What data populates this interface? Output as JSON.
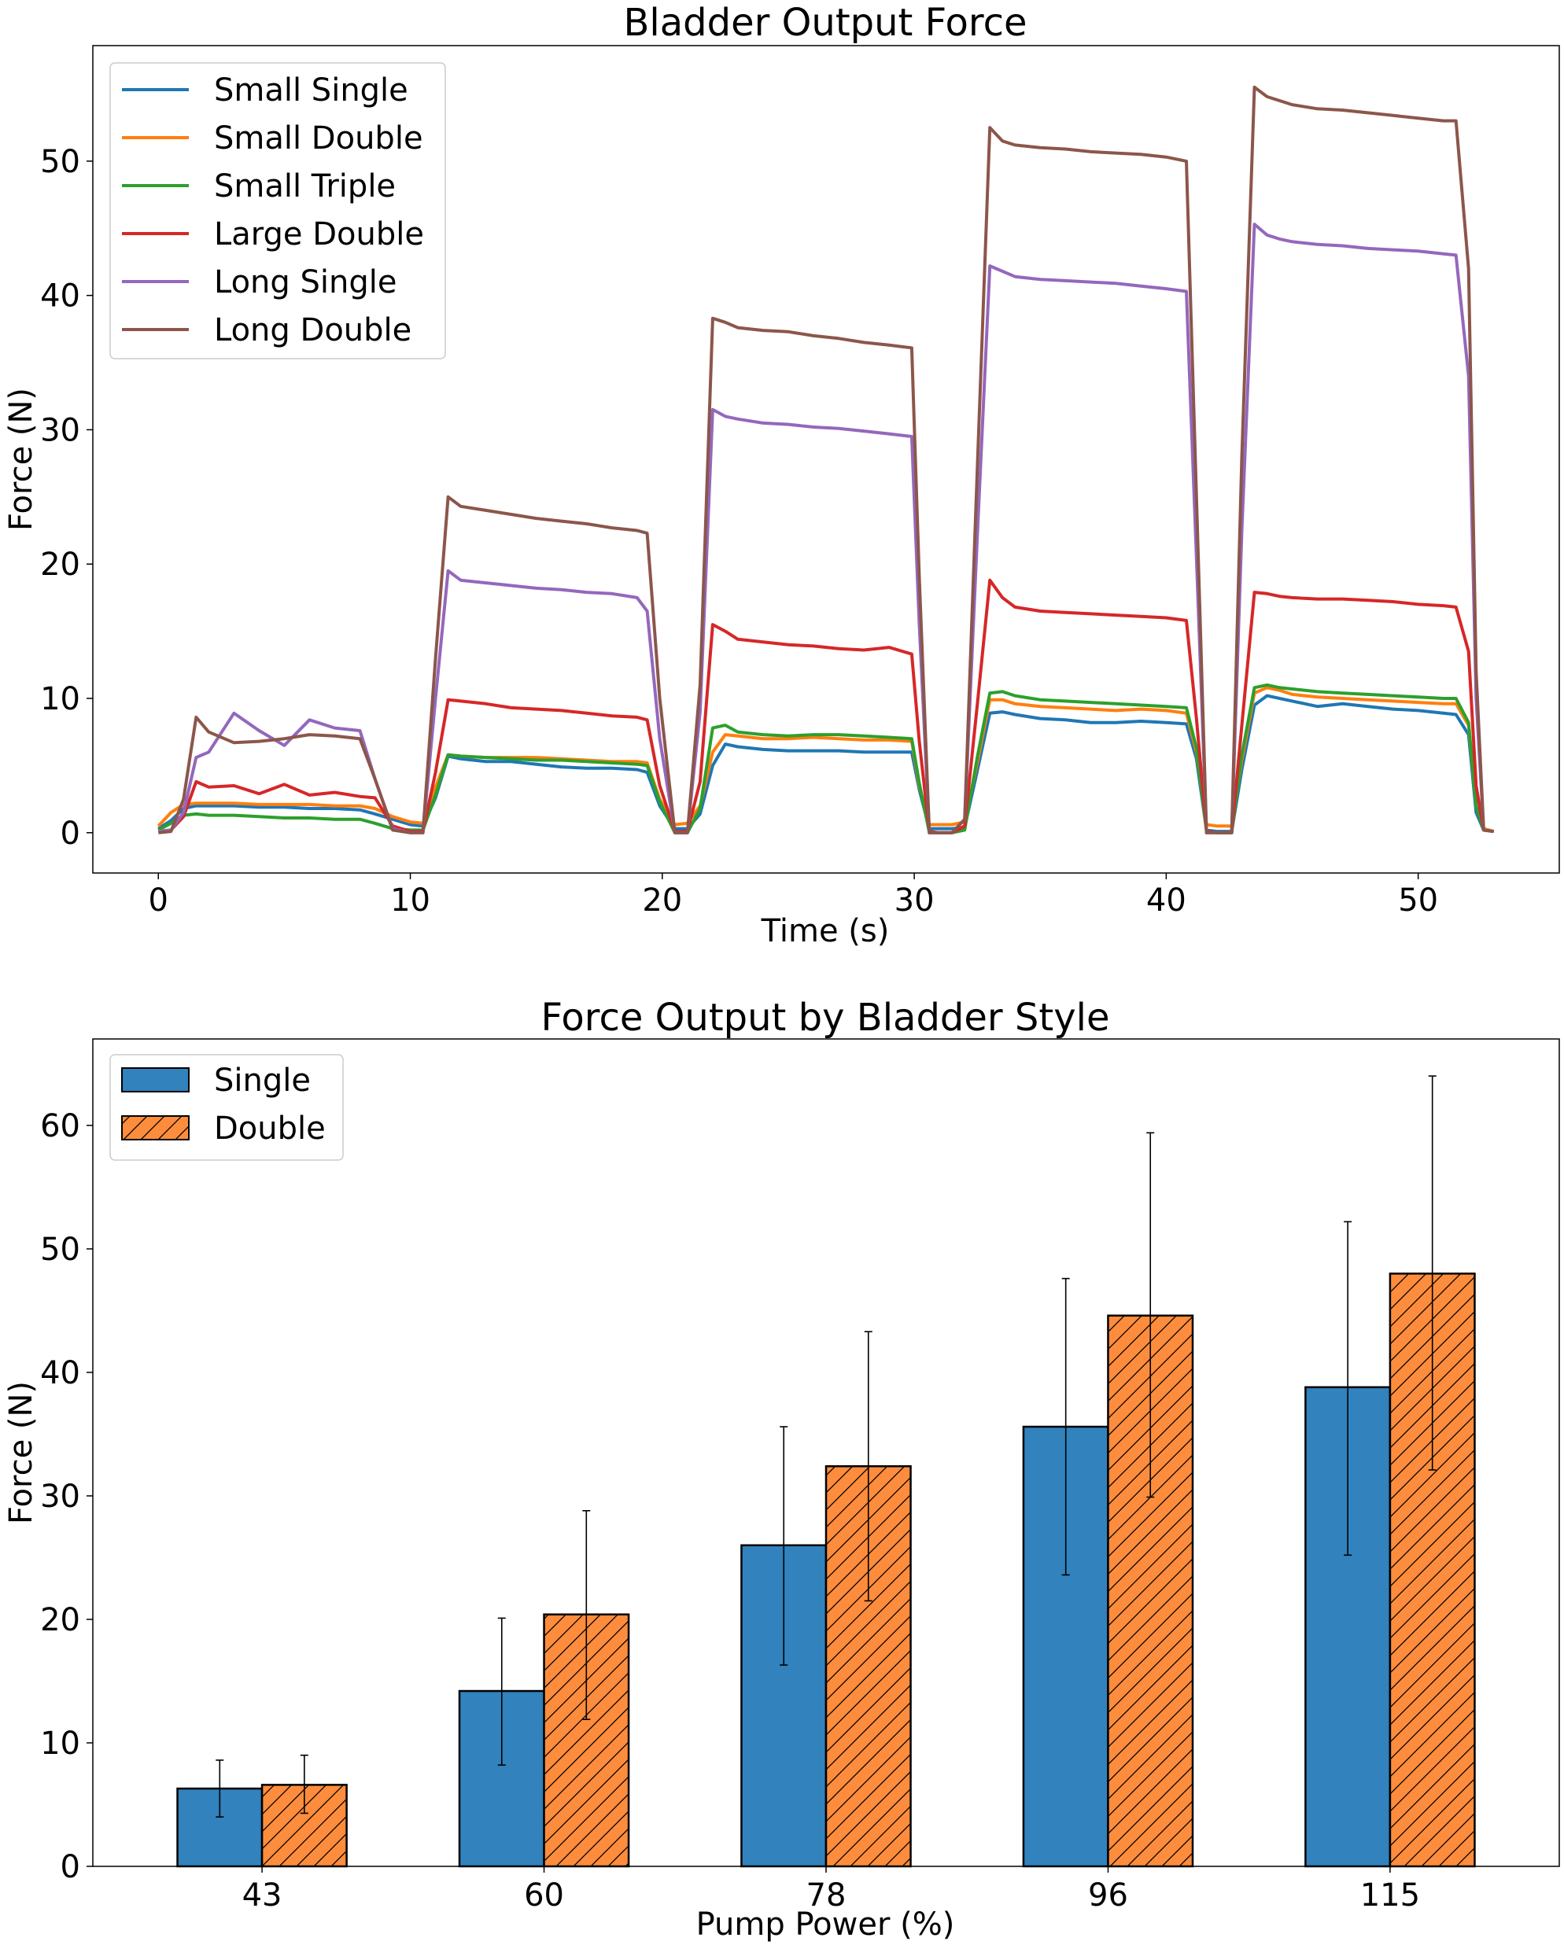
{
  "chart_data": [
    {
      "type": "line",
      "title": "Bladder Output Force",
      "xlabel": "Time (s)",
      "ylabel": "Force (N)",
      "xlim": [
        -2.6,
        55.6
      ],
      "ylim": [
        -3,
        58.6
      ],
      "xticks": [
        0,
        10,
        20,
        30,
        40,
        50
      ],
      "yticks": [
        0,
        10,
        20,
        30,
        40,
        50
      ],
      "grid": false,
      "legend_position": "top-left",
      "series": [
        {
          "name": "Small Single",
          "color": "#1f77b4",
          "x": [
            0,
            0.5,
            1,
            1.5,
            2,
            3,
            4,
            5,
            6,
            7,
            8,
            8.6,
            9.3,
            10,
            10.5,
            11,
            11.5,
            12,
            13,
            14,
            15,
            16,
            17,
            18,
            19,
            19.4,
            19.9,
            20.5,
            21,
            21.5,
            22,
            22.5,
            23,
            24,
            25,
            26,
            27,
            28,
            29,
            29.9,
            30.2,
            30.6,
            31,
            31.5,
            32,
            32.5,
            33,
            33.5,
            34,
            35,
            36,
            37,
            38,
            39,
            40,
            40.8,
            41.2,
            41.6,
            42,
            42.6,
            43,
            43.5,
            44,
            44.5,
            45,
            46,
            47,
            48,
            49,
            50,
            51,
            51.5,
            52,
            52.3,
            52.6,
            53
          ],
          "y": [
            0.3,
            0.9,
            1.8,
            2.0,
            2.0,
            2.0,
            1.9,
            1.9,
            1.8,
            1.8,
            1.7,
            1.4,
            1.0,
            0.6,
            0.5,
            2.6,
            5.7,
            5.5,
            5.3,
            5.3,
            5.1,
            4.9,
            4.8,
            4.8,
            4.7,
            4.5,
            2.0,
            0.3,
            0.3,
            1.4,
            5.0,
            6.6,
            6.4,
            6.2,
            6.1,
            6.1,
            6.1,
            6.0,
            6.0,
            6.0,
            3.2,
            0.3,
            0.3,
            0.3,
            0.4,
            4.6,
            8.9,
            9.0,
            8.8,
            8.5,
            8.4,
            8.2,
            8.2,
            8.3,
            8.2,
            8.1,
            5.5,
            0.2,
            0.1,
            0.1,
            4.7,
            9.5,
            10.2,
            10.0,
            9.8,
            9.4,
            9.6,
            9.4,
            9.2,
            9.1,
            8.9,
            8.8,
            7.3,
            1.5,
            0.2,
            0.1
          ]
        },
        {
          "name": "Small Double",
          "color": "#ff7f0e",
          "x": [
            0,
            0.5,
            1,
            1.5,
            2,
            3,
            4,
            5,
            6,
            7,
            8,
            8.6,
            9.3,
            10,
            10.5,
            11,
            11.5,
            12,
            13,
            14,
            15,
            16,
            17,
            18,
            19,
            19.4,
            19.9,
            20.5,
            21,
            21.5,
            22,
            22.5,
            23,
            24,
            25,
            26,
            27,
            28,
            29,
            29.9,
            30.2,
            30.6,
            31,
            31.5,
            32,
            32.5,
            33,
            33.5,
            34,
            35,
            36,
            37,
            38,
            39,
            40,
            40.8,
            41.2,
            41.6,
            42,
            42.6,
            43,
            43.5,
            44,
            44.5,
            45,
            46,
            47,
            48,
            49,
            50,
            51,
            51.5,
            52,
            52.3,
            52.6,
            53
          ],
          "y": [
            0.5,
            1.5,
            2.1,
            2.2,
            2.2,
            2.2,
            2.1,
            2.1,
            2.1,
            2.0,
            2.0,
            1.8,
            1.2,
            0.8,
            0.7,
            3.4,
            5.8,
            5.7,
            5.6,
            5.6,
            5.6,
            5.5,
            5.4,
            5.3,
            5.3,
            5.2,
            2.5,
            0.6,
            0.7,
            2.0,
            6.0,
            7.3,
            7.2,
            7.0,
            7.0,
            7.1,
            7.0,
            6.9,
            6.9,
            6.8,
            3.5,
            0.6,
            0.6,
            0.6,
            0.8,
            5.2,
            9.9,
            9.9,
            9.6,
            9.4,
            9.3,
            9.2,
            9.1,
            9.2,
            9.1,
            8.9,
            6.0,
            0.6,
            0.5,
            0.5,
            5.4,
            10.4,
            10.8,
            10.6,
            10.3,
            10.1,
            10.0,
            9.9,
            9.8,
            9.7,
            9.6,
            9.6,
            8.0,
            2.0,
            0.3,
            0.1
          ]
        },
        {
          "name": "Small Triple",
          "color": "#2ca02c",
          "x": [
            0,
            0.5,
            1,
            1.5,
            2,
            3,
            4,
            5,
            6,
            7,
            8,
            8.6,
            9.3,
            10,
            10.5,
            11,
            11.5,
            12,
            13,
            14,
            15,
            16,
            17,
            18,
            19,
            19.4,
            19.9,
            20.5,
            21,
            21.5,
            22,
            22.5,
            23,
            24,
            25,
            26,
            27,
            28,
            29,
            29.9,
            30.2,
            30.6,
            31,
            31.5,
            32,
            32.5,
            33,
            33.5,
            34,
            35,
            36,
            37,
            38,
            39,
            40,
            40.8,
            41.2,
            41.6,
            42,
            42.6,
            43,
            43.5,
            44,
            44.5,
            45,
            46,
            47,
            48,
            49,
            50,
            51,
            51.5,
            52,
            52.3,
            52.6,
            53
          ],
          "y": [
            0.2,
            0.7,
            1.3,
            1.4,
            1.3,
            1.3,
            1.2,
            1.1,
            1.1,
            1.0,
            1.0,
            0.7,
            0.3,
            0.2,
            0.2,
            2.8,
            5.8,
            5.7,
            5.6,
            5.5,
            5.4,
            5.4,
            5.3,
            5.2,
            5.1,
            5.0,
            2.3,
            0.0,
            0.0,
            1.8,
            7.8,
            8.0,
            7.5,
            7.3,
            7.2,
            7.3,
            7.3,
            7.2,
            7.1,
            7.0,
            3.7,
            0.0,
            0.0,
            0.0,
            0.2,
            5.6,
            10.4,
            10.5,
            10.2,
            9.9,
            9.8,
            9.7,
            9.6,
            9.5,
            9.4,
            9.3,
            6.3,
            0.1,
            0.0,
            0.0,
            5.8,
            10.8,
            11.0,
            10.8,
            10.7,
            10.5,
            10.4,
            10.3,
            10.2,
            10.1,
            10.0,
            10.0,
            8.2,
            2.0,
            0.2,
            0.1
          ]
        },
        {
          "name": "Large Double",
          "color": "#d62728",
          "x": [
            0,
            0.5,
            1,
            1.5,
            2,
            3,
            4,
            5,
            6,
            7,
            8,
            8.6,
            9.3,
            10,
            10.5,
            11,
            11.5,
            12,
            13,
            14,
            15,
            16,
            17,
            18,
            19,
            19.4,
            19.9,
            20.5,
            21,
            21.5,
            22,
            22.5,
            23,
            24,
            25,
            26,
            27,
            28,
            29,
            29.9,
            30.2,
            30.6,
            31,
            31.5,
            32,
            32.5,
            33,
            33.5,
            34,
            35,
            36,
            37,
            38,
            39,
            40,
            40.8,
            41.2,
            41.6,
            42,
            42.6,
            43,
            43.5,
            44,
            44.5,
            45,
            46,
            47,
            48,
            49,
            50,
            51,
            51.5,
            52,
            52.3,
            52.6,
            53
          ],
          "y": [
            0.1,
            0.2,
            1.2,
            3.8,
            3.4,
            3.5,
            2.9,
            3.6,
            2.8,
            3.0,
            2.7,
            2.6,
            0.5,
            0.1,
            0.1,
            4.5,
            9.9,
            9.8,
            9.6,
            9.3,
            9.2,
            9.1,
            8.9,
            8.7,
            8.6,
            8.4,
            3.5,
            0.1,
            0.1,
            3.8,
            15.5,
            15.0,
            14.4,
            14.2,
            14.0,
            13.9,
            13.7,
            13.6,
            13.8,
            13.3,
            6.8,
            0.1,
            0.0,
            0.0,
            0.5,
            9.5,
            18.8,
            17.5,
            16.8,
            16.5,
            16.4,
            16.3,
            16.2,
            16.1,
            16.0,
            15.8,
            8.5,
            0.1,
            0.0,
            0.0,
            8.0,
            17.9,
            17.8,
            17.6,
            17.5,
            17.4,
            17.4,
            17.3,
            17.2,
            17.0,
            16.9,
            16.8,
            13.5,
            3.5,
            0.2,
            0.1
          ]
        },
        {
          "name": "Long Single",
          "color": "#9467bd",
          "x": [
            0,
            0.5,
            1,
            1.5,
            2,
            3,
            4,
            5,
            6,
            7,
            8,
            8.6,
            9.3,
            10,
            10.5,
            11,
            11.5,
            12,
            13,
            14,
            15,
            16,
            17,
            18,
            19,
            19.4,
            19.9,
            20.5,
            21,
            21.5,
            22,
            22.5,
            23,
            24,
            25,
            26,
            27,
            28,
            29,
            29.9,
            30.2,
            30.6,
            31,
            31.5,
            32,
            32.5,
            33,
            33.5,
            34,
            35,
            36,
            37,
            38,
            39,
            40,
            40.8,
            41.2,
            41.6,
            42,
            42.6,
            43,
            43.5,
            44,
            44.5,
            45,
            46,
            47,
            48,
            49,
            50,
            51,
            51.5,
            52,
            52.3,
            52.6,
            53
          ],
          "y": [
            0.1,
            0.2,
            1.5,
            5.6,
            6.0,
            8.9,
            7.6,
            6.5,
            8.4,
            7.8,
            7.6,
            4.0,
            0.3,
            0.0,
            0.0,
            10.0,
            19.5,
            18.8,
            18.6,
            18.4,
            18.2,
            18.1,
            17.9,
            17.8,
            17.5,
            16.5,
            7.0,
            0.0,
            0.0,
            9.0,
            31.5,
            31.0,
            30.8,
            30.5,
            30.4,
            30.2,
            30.1,
            29.9,
            29.7,
            29.5,
            15.5,
            0.0,
            0.0,
            0.0,
            1.0,
            22.0,
            42.2,
            41.8,
            41.4,
            41.2,
            41.1,
            41.0,
            40.9,
            40.7,
            40.5,
            40.3,
            20.5,
            0.0,
            0.0,
            0.0,
            22.5,
            45.3,
            44.5,
            44.2,
            44.0,
            43.8,
            43.7,
            43.5,
            43.4,
            43.3,
            43.1,
            43.0,
            34.0,
            10.0,
            0.2,
            0.1
          ]
        },
        {
          "name": "Long Double",
          "color": "#8c564b",
          "x": [
            0,
            0.5,
            1,
            1.5,
            2,
            3,
            4,
            5,
            6,
            7,
            8,
            8.6,
            9.3,
            10,
            10.5,
            11,
            11.5,
            12,
            13,
            14,
            15,
            16,
            17,
            18,
            19,
            19.4,
            19.9,
            20.5,
            21,
            21.5,
            22,
            22.5,
            23,
            24,
            25,
            26,
            27,
            28,
            29,
            29.9,
            30.2,
            30.6,
            31,
            31.5,
            32,
            32.5,
            33,
            33.5,
            34,
            35,
            36,
            37,
            38,
            39,
            40,
            40.8,
            41.2,
            41.6,
            42,
            42.6,
            43,
            43.5,
            44,
            44.5,
            45,
            46,
            47,
            48,
            49,
            50,
            51,
            51.5,
            52,
            52.3,
            52.6,
            53
          ],
          "y": [
            0.0,
            0.1,
            2.5,
            8.6,
            7.5,
            6.7,
            6.8,
            7.0,
            7.3,
            7.2,
            7.0,
            4.0,
            0.2,
            0.0,
            0.0,
            13.0,
            25.0,
            24.3,
            24.0,
            23.7,
            23.4,
            23.2,
            23.0,
            22.7,
            22.5,
            22.3,
            10.0,
            0.0,
            0.0,
            11.0,
            38.3,
            38.0,
            37.6,
            37.4,
            37.3,
            37.0,
            36.8,
            36.5,
            36.3,
            36.1,
            19.0,
            0.0,
            0.0,
            0.0,
            1.0,
            27.0,
            52.5,
            51.5,
            51.2,
            51.0,
            50.9,
            50.7,
            50.6,
            50.5,
            50.3,
            50.0,
            25.0,
            0.0,
            0.0,
            0.0,
            28.0,
            55.5,
            54.8,
            54.5,
            54.2,
            53.9,
            53.8,
            53.6,
            53.4,
            53.2,
            53.0,
            53.0,
            42.0,
            12.0,
            0.2,
            0.1
          ]
        }
      ]
    },
    {
      "type": "bar",
      "title": "Force Output by Bladder Style",
      "xlabel": "Pump Power (%)",
      "ylabel": "Force (N)",
      "categories": [
        "43",
        "60",
        "78",
        "96",
        "115"
      ],
      "ylim": [
        0,
        67
      ],
      "yticks": [
        0,
        10,
        20,
        30,
        40,
        50,
        60
      ],
      "grid": false,
      "legend_position": "top-left",
      "series": [
        {
          "name": "Single",
          "color": "#3182bd",
          "hatch": false,
          "values": [
            6.3,
            14.2,
            26.0,
            35.6,
            38.8
          ],
          "err_low": [
            4.0,
            8.2,
            16.3,
            23.6,
            25.2
          ],
          "err_high": [
            8.6,
            20.1,
            35.6,
            47.6,
            52.2
          ]
        },
        {
          "name": "Double",
          "color": "#fd8d3c",
          "hatch": true,
          "values": [
            6.6,
            20.4,
            32.4,
            44.6,
            48.0
          ],
          "err_low": [
            4.3,
            11.9,
            21.5,
            29.9,
            32.1
          ],
          "err_high": [
            9.0,
            28.8,
            43.3,
            59.4,
            64.0
          ]
        }
      ]
    }
  ]
}
